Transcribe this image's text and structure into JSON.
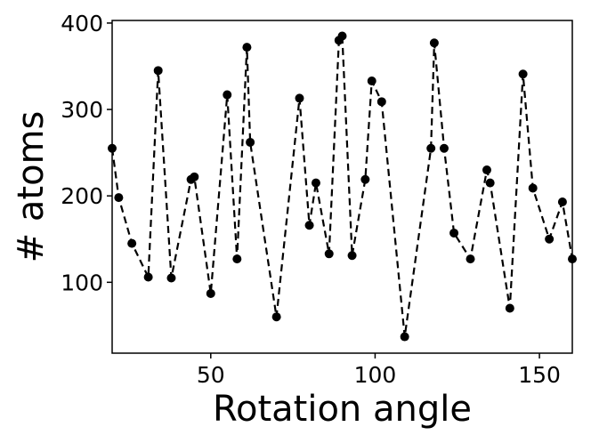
{
  "chart_data": {
    "type": "line",
    "xlabel": "Rotation angle",
    "ylabel": "# atoms",
    "xlim": [
      20,
      160
    ],
    "ylim": [
      18,
      403
    ],
    "x_ticks": [
      50,
      100,
      150
    ],
    "y_ticks": [
      100,
      200,
      300,
      400
    ],
    "grid": false,
    "line_style": "dashed",
    "marker": "circle",
    "color": "#000000",
    "series": [
      {
        "x": [
          20,
          22,
          26,
          31,
          34,
          38,
          44,
          45,
          50,
          55,
          58,
          61,
          62,
          70,
          77,
          80,
          82,
          86,
          89,
          90,
          93,
          97,
          99,
          102,
          109,
          117,
          118,
          121,
          124,
          129,
          134,
          135,
          141,
          145,
          148,
          153,
          157,
          160
        ],
        "y": [
          255,
          198,
          145,
          106,
          345,
          105,
          219,
          222,
          87,
          317,
          127,
          372,
          262,
          60,
          313,
          166,
          215,
          133,
          380,
          385,
          131,
          219,
          333,
          309,
          37,
          255,
          377,
          255,
          157,
          127,
          230,
          215,
          70,
          341,
          209,
          150,
          193,
          127
        ]
      }
    ]
  }
}
